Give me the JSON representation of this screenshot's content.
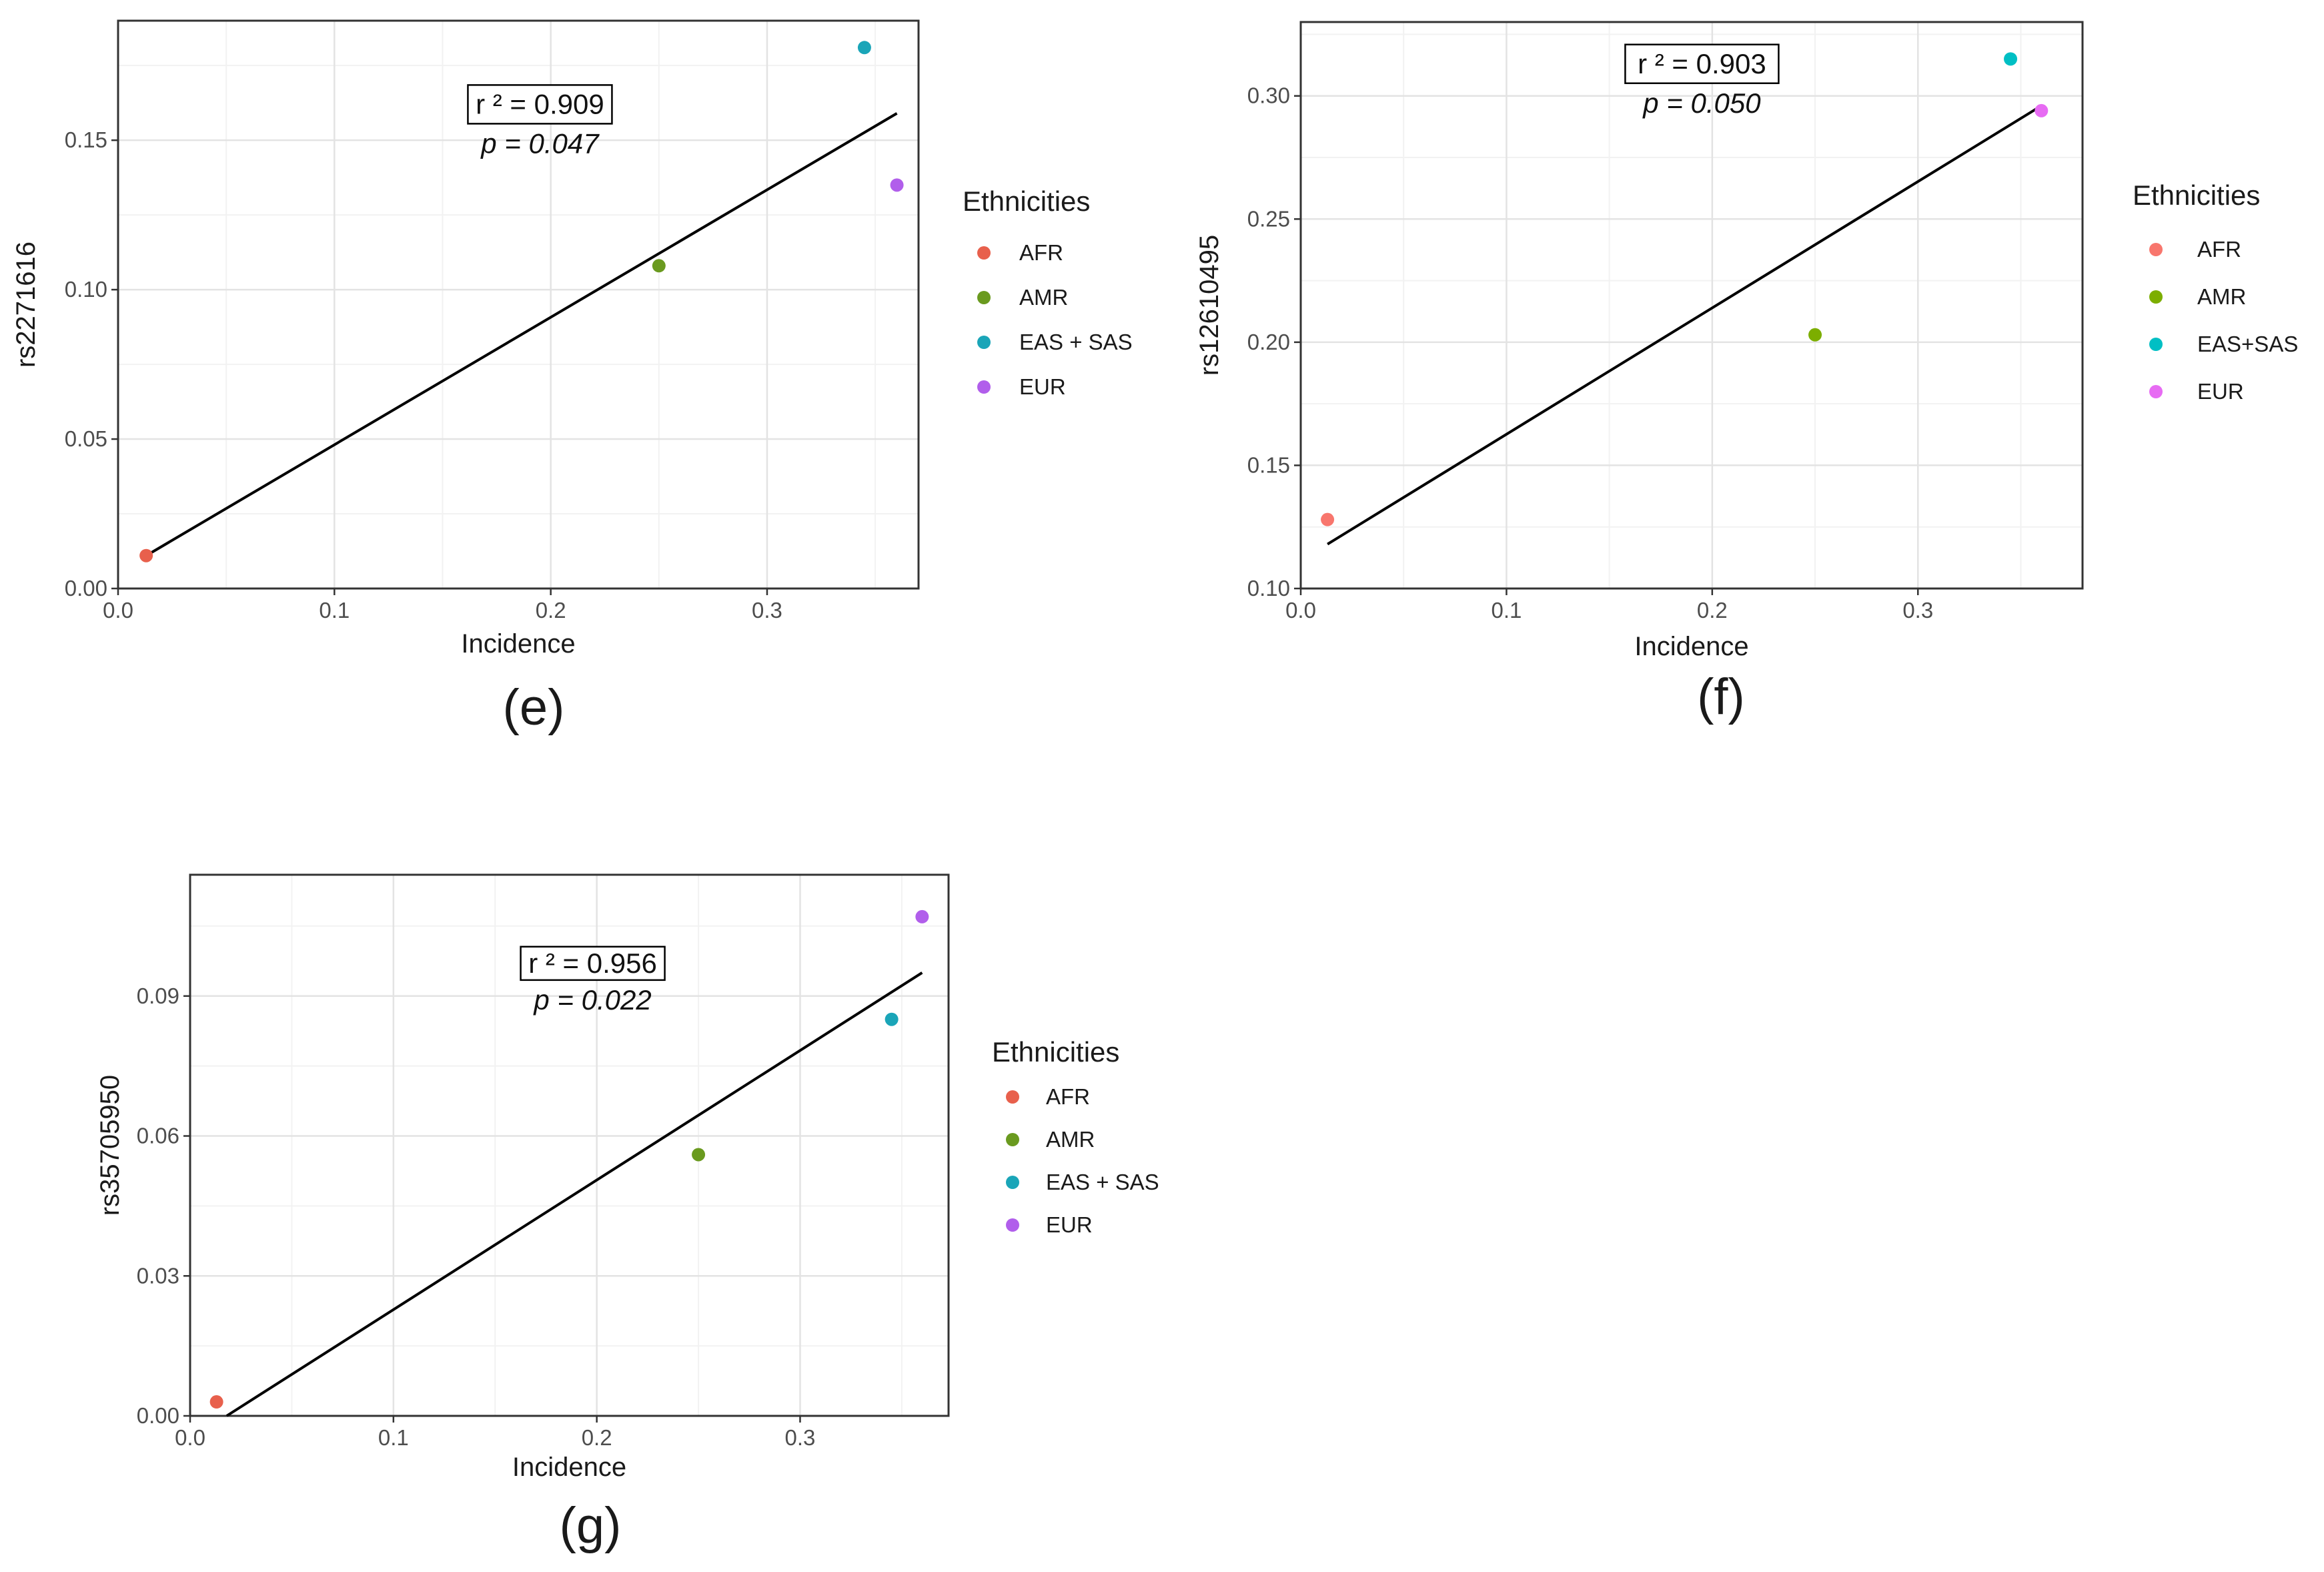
{
  "chart_data": [
    {
      "type": "scatter",
      "panel_label": "(e)",
      "xlabel": "Incidence",
      "ylabel": "rs2271616",
      "xlim": [
        0,
        0.37
      ],
      "ylim": [
        0,
        0.19
      ],
      "x_ticks": [
        0.0,
        0.1,
        0.2,
        0.3
      ],
      "x_tick_labels": [
        "0.0",
        "0.1",
        "0.2",
        "0.3"
      ],
      "y_ticks": [
        0.0,
        0.05,
        0.1,
        0.15
      ],
      "y_tick_labels": [
        "0.00",
        "0.05",
        "0.10",
        "0.15"
      ],
      "legend_title": "Ethnicities",
      "series": [
        {
          "name": "AFR",
          "color": "#E8604C",
          "x": 0.013,
          "y": 0.011
        },
        {
          "name": "AMR",
          "color": "#6A9A1F",
          "x": 0.25,
          "y": 0.108
        },
        {
          "name": "EAS + SAS",
          "color": "#1AA5B8",
          "x": 0.345,
          "y": 0.181
        },
        {
          "name": "EUR",
          "color": "#B15EEB",
          "x": 0.36,
          "y": 0.135
        }
      ],
      "fit_line": {
        "x": [
          0.013,
          0.36
        ],
        "y": [
          0.011,
          0.159
        ]
      },
      "stats": {
        "r2": "r ² = 0.909",
        "p": "p = 0.047",
        "anchor": [
          0.195,
          0.162
        ]
      }
    },
    {
      "type": "scatter",
      "panel_label": "(f)",
      "xlabel": "Incidence",
      "ylabel": "rs12610495",
      "xlim": [
        0,
        0.38
      ],
      "ylim": [
        0.1,
        0.33
      ],
      "x_ticks": [
        0.0,
        0.1,
        0.2,
        0.3
      ],
      "x_tick_labels": [
        "0.0",
        "0.1",
        "0.2",
        "0.3"
      ],
      "y_ticks": [
        0.1,
        0.15,
        0.2,
        0.25,
        0.3
      ],
      "y_tick_labels": [
        "0.10",
        "0.15",
        "0.20",
        "0.25",
        "0.30"
      ],
      "legend_title": "Ethnicities",
      "series": [
        {
          "name": "AFR",
          "color": "#F8766D",
          "x": 0.013,
          "y": 0.128
        },
        {
          "name": "AMR",
          "color": "#7CAE00",
          "x": 0.25,
          "y": 0.203
        },
        {
          "name": "EAS+SAS",
          "color": "#00BFC4",
          "x": 0.345,
          "y": 0.315
        },
        {
          "name": "EUR",
          "color": "#E76BF3",
          "x": 0.36,
          "y": 0.294
        }
      ],
      "fit_line": {
        "x": [
          0.013,
          0.36
        ],
        "y": [
          0.118,
          0.296
        ]
      },
      "stats": {
        "r2": "r ² = 0.903",
        "p": "p = 0.050",
        "anchor": [
          0.195,
          0.313
        ]
      }
    },
    {
      "type": "scatter",
      "panel_label": "(g)",
      "xlabel": "Incidence",
      "ylabel": "rs35705950",
      "xlim": [
        0,
        0.373
      ],
      "ylim": [
        0,
        0.116
      ],
      "x_ticks": [
        0.0,
        0.1,
        0.2,
        0.3
      ],
      "x_tick_labels": [
        "0.0",
        "0.1",
        "0.2",
        "0.3"
      ],
      "y_ticks": [
        0.0,
        0.03,
        0.06,
        0.09
      ],
      "y_tick_labels": [
        "0.00",
        "0.03",
        "0.06",
        "0.09"
      ],
      "legend_title": "Ethnicities",
      "series": [
        {
          "name": "AFR",
          "color": "#E8604C",
          "x": 0.013,
          "y": 0.003
        },
        {
          "name": "AMR",
          "color": "#6A9A1F",
          "x": 0.25,
          "y": 0.056
        },
        {
          "name": "EAS + SAS",
          "color": "#1AA5B8",
          "x": 0.345,
          "y": 0.085
        },
        {
          "name": "EUR",
          "color": "#B15EEB",
          "x": 0.36,
          "y": 0.107
        }
      ],
      "fit_line": {
        "x": [
          0.018,
          0.36
        ],
        "y": [
          0.0,
          0.095
        ]
      },
      "stats": {
        "r2": "r ² = 0.956",
        "p": "p = 0.022",
        "anchor": [
          0.198,
          0.097
        ]
      }
    }
  ]
}
